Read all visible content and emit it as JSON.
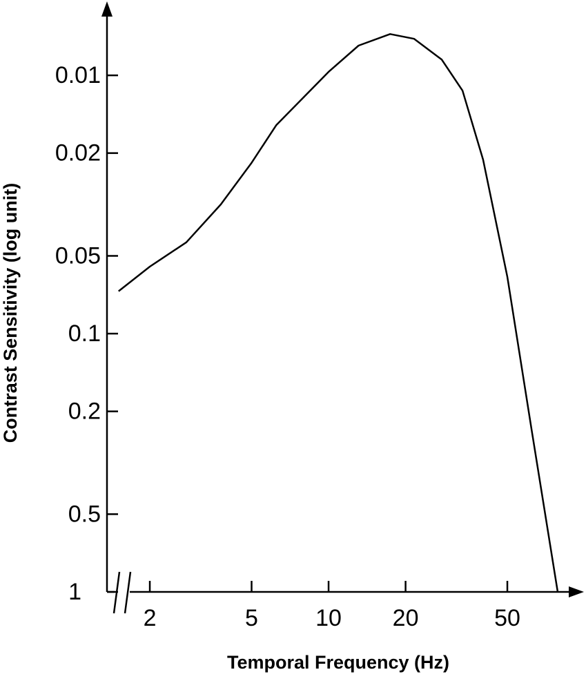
{
  "chart_data": {
    "type": "line",
    "x_label": "Temporal Frequency (Hz)",
    "y_label": "Contrast Sensitivity (log unit)",
    "x_scale": "log",
    "y_scale": "log",
    "xlim": [
      1.36,
      96
    ],
    "ylim": [
      1,
      0.0055
    ],
    "xticks": [
      2,
      5,
      10,
      20,
      50
    ],
    "yticks": [
      0.01,
      0.02,
      0.05,
      0.1,
      0.2,
      0.5,
      1
    ],
    "x": [
      1.51,
      2,
      2.78,
      3.79,
      5,
      6.24,
      10,
      13.1,
      17.4,
      21.6,
      27.7,
      33.4,
      40.2,
      50,
      62.1,
      78.7
    ],
    "series": [
      {
        "color": "#000000",
        "values": [
          0.0685,
          0.055,
          0.0443,
          0.0316,
          0.0218,
          0.0156,
          0.0097,
          0.00767,
          0.00692,
          0.00722,
          0.00869,
          0.01146,
          0.0212,
          0.0602,
          0.233,
          1
        ]
      }
    ]
  }
}
